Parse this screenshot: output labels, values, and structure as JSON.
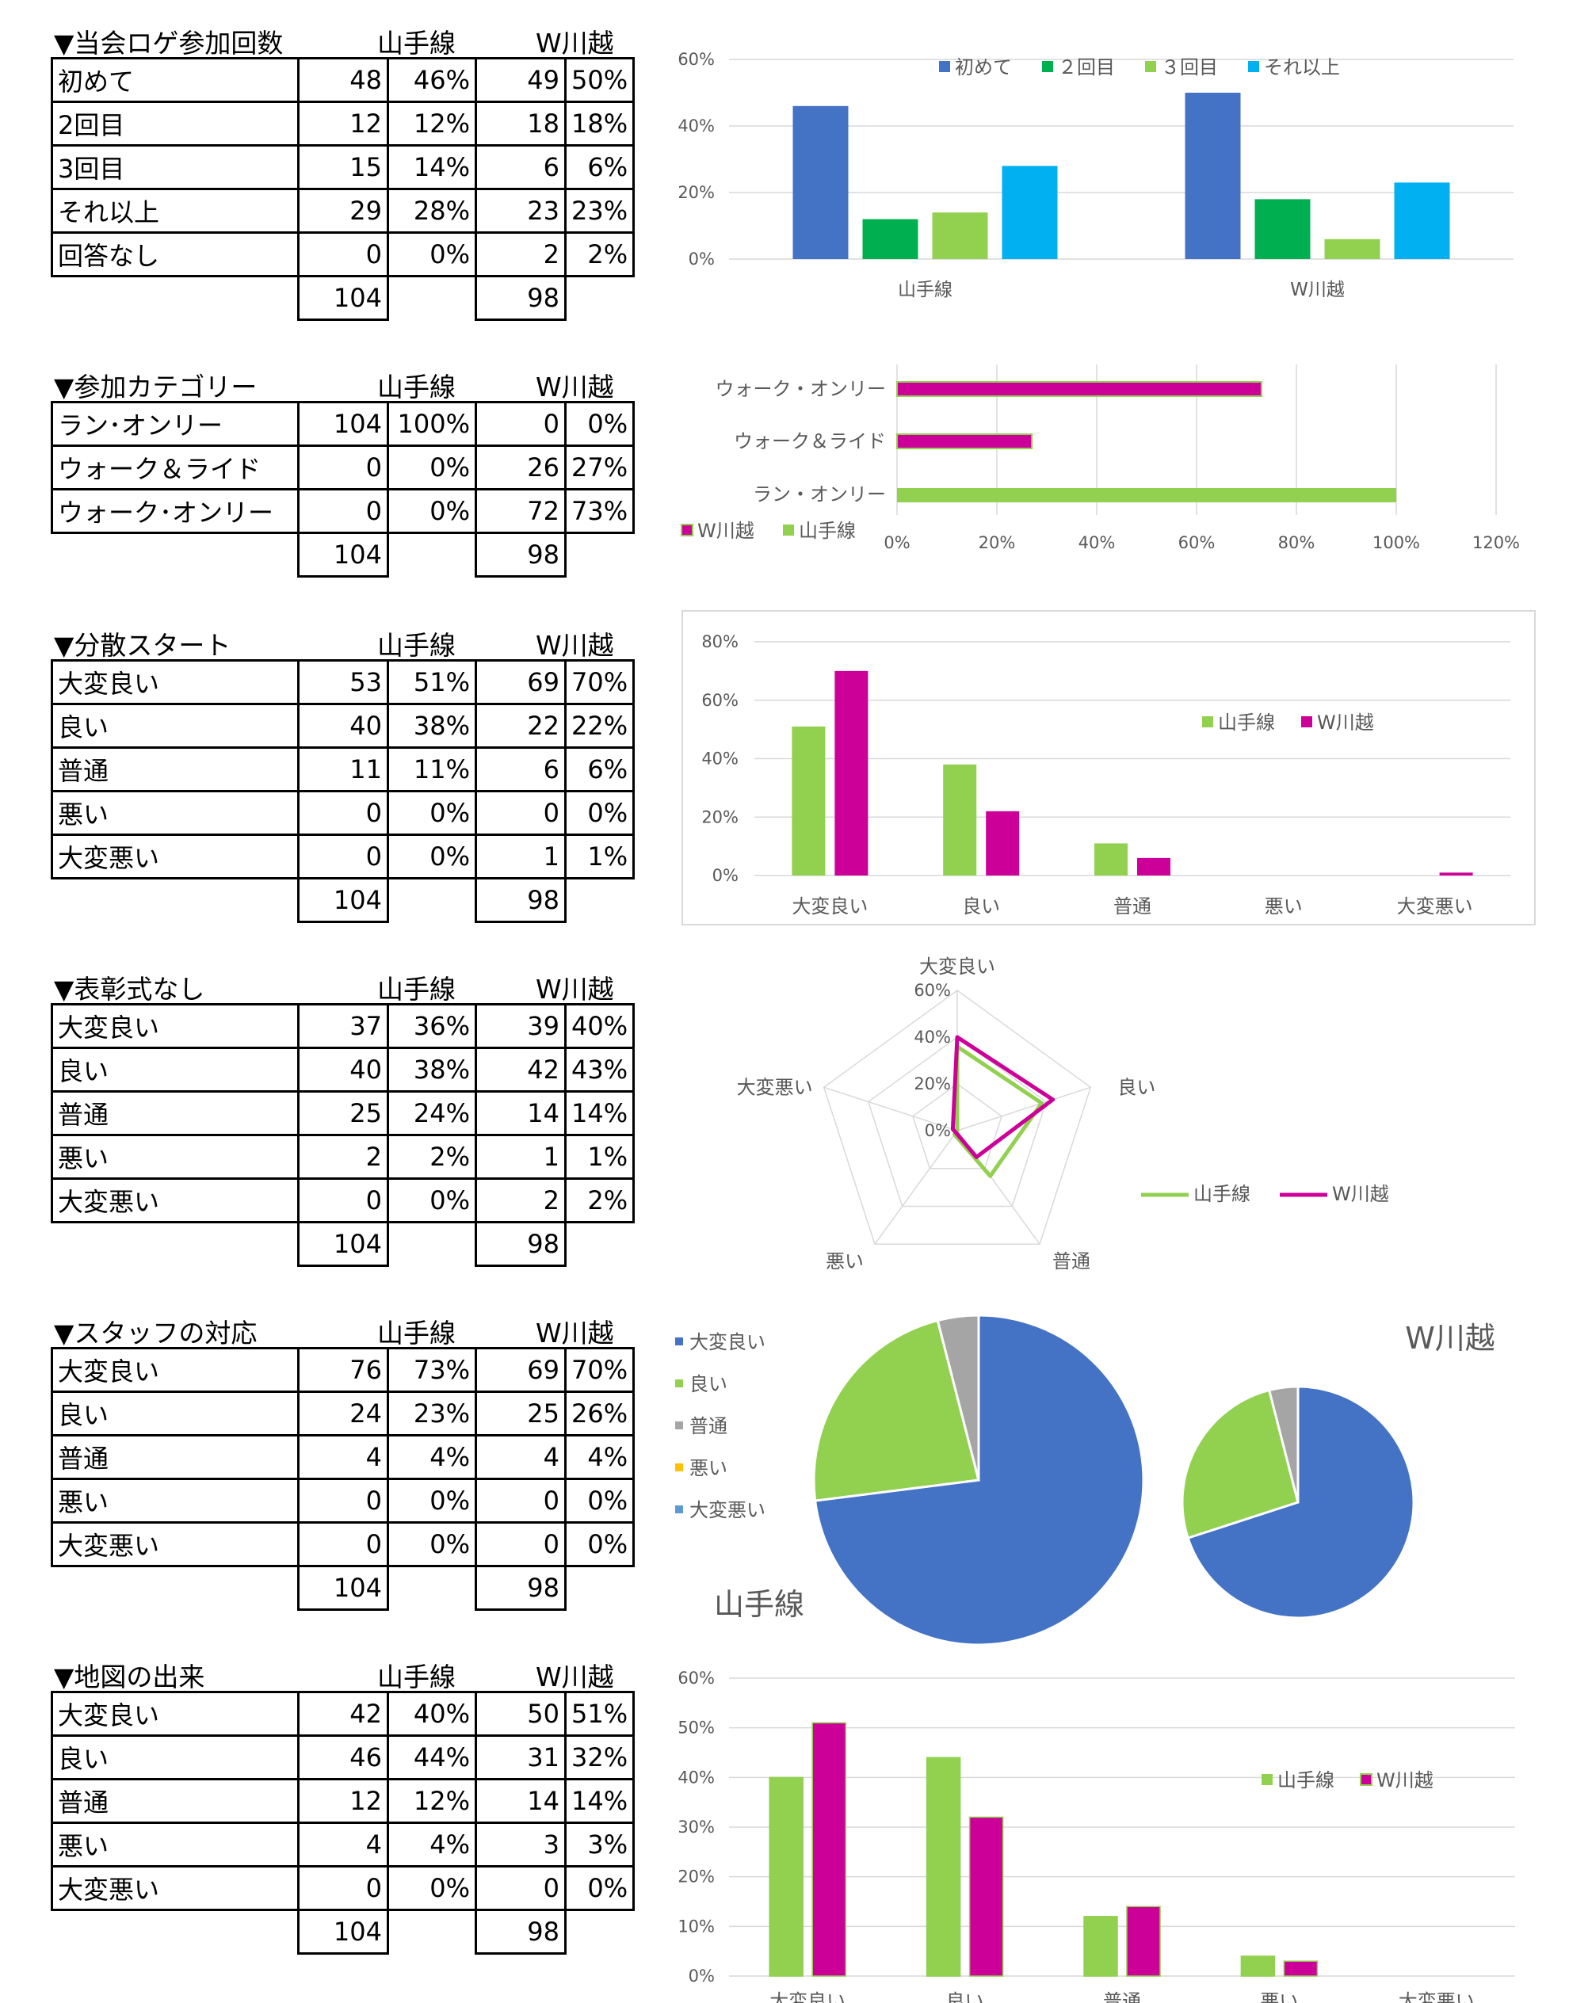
{
  "colors": {
    "blue": "#4472C4",
    "green": "#00B050",
    "lightgreen": "#92D050",
    "cyan": "#00B0F0",
    "magenta": "#CC0099",
    "gray": "#A5A5A5",
    "gold": "#FFC000",
    "steel": "#5B9BD5"
  },
  "sections": [
    {
      "title": "▼当会ロゲ参加回数",
      "col1": "山手線",
      "col2": "W川越",
      "rows": [
        {
          "label": "初めて",
          "n1": "48",
          "p1": "46%",
          "n2": "49",
          "p2": "50%"
        },
        {
          "label": "2回目",
          "n1": "12",
          "p1": "12%",
          "n2": "18",
          "p2": "18%"
        },
        {
          "label": "3回目",
          "n1": "15",
          "p1": "14%",
          "n2": "6",
          "p2": "6%"
        },
        {
          "label": "それ以上",
          "n1": "29",
          "p1": "28%",
          "n2": "23",
          "p2": "23%"
        },
        {
          "label": "回答なし",
          "n1": "0",
          "p1": "0%",
          "n2": "2",
          "p2": "2%"
        }
      ],
      "total1": "104",
      "total2": "98"
    },
    {
      "title": "▼参加カテゴリー",
      "col1": "山手線",
      "col2": "W川越",
      "rows": [
        {
          "label": "ラン･オンリー",
          "n1": "104",
          "p1": "100%",
          "n2": "0",
          "p2": "0%"
        },
        {
          "label": "ウォーク＆ライド",
          "n1": "0",
          "p1": "0%",
          "n2": "26",
          "p2": "27%"
        },
        {
          "label": "ウォーク･オンリー",
          "n1": "0",
          "p1": "0%",
          "n2": "72",
          "p2": "73%"
        }
      ],
      "total1": "104",
      "total2": "98"
    },
    {
      "title": "▼分散スタート",
      "col1": "山手線",
      "col2": "W川越",
      "rows": [
        {
          "label": "大変良い",
          "n1": "53",
          "p1": "51%",
          "n2": "69",
          "p2": "70%"
        },
        {
          "label": "良い",
          "n1": "40",
          "p1": "38%",
          "n2": "22",
          "p2": "22%"
        },
        {
          "label": "普通",
          "n1": "11",
          "p1": "11%",
          "n2": "6",
          "p2": "6%"
        },
        {
          "label": "悪い",
          "n1": "0",
          "p1": "0%",
          "n2": "0",
          "p2": "0%"
        },
        {
          "label": "大変悪い",
          "n1": "0",
          "p1": "0%",
          "n2": "1",
          "p2": "1%"
        }
      ],
      "total1": "104",
      "total2": "98"
    },
    {
      "title": "▼表彰式なし",
      "col1": "山手線",
      "col2": "W川越",
      "rows": [
        {
          "label": "大変良い",
          "n1": "37",
          "p1": "36%",
          "n2": "39",
          "p2": "40%"
        },
        {
          "label": "良い",
          "n1": "40",
          "p1": "38%",
          "n2": "42",
          "p2": "43%"
        },
        {
          "label": "普通",
          "n1": "25",
          "p1": "24%",
          "n2": "14",
          "p2": "14%"
        },
        {
          "label": "悪い",
          "n1": "2",
          "p1": "2%",
          "n2": "1",
          "p2": "1%"
        },
        {
          "label": "大変悪い",
          "n1": "0",
          "p1": "0%",
          "n2": "2",
          "p2": "2%"
        }
      ],
      "total1": "104",
      "total2": "98"
    },
    {
      "title": "▼スタッフの対応",
      "col1": "山手線",
      "col2": "W川越",
      "rows": [
        {
          "label": "大変良い",
          "n1": "76",
          "p1": "73%",
          "n2": "69",
          "p2": "70%"
        },
        {
          "label": "良い",
          "n1": "24",
          "p1": "23%",
          "n2": "25",
          "p2": "26%"
        },
        {
          "label": "普通",
          "n1": "4",
          "p1": "4%",
          "n2": "4",
          "p2": "4%"
        },
        {
          "label": "悪い",
          "n1": "0",
          "p1": "0%",
          "n2": "0",
          "p2": "0%"
        },
        {
          "label": "大変悪い",
          "n1": "0",
          "p1": "0%",
          "n2": "0",
          "p2": "0%"
        }
      ],
      "total1": "104",
      "total2": "98"
    },
    {
      "title": "▼地図の出来",
      "col1": "山手線",
      "col2": "W川越",
      "rows": [
        {
          "label": "大変良い",
          "n1": "42",
          "p1": "40%",
          "n2": "50",
          "p2": "51%"
        },
        {
          "label": "良い",
          "n1": "46",
          "p1": "44%",
          "n2": "31",
          "p2": "32%"
        },
        {
          "label": "普通",
          "n1": "12",
          "p1": "12%",
          "n2": "14",
          "p2": "14%"
        },
        {
          "label": "悪い",
          "n1": "4",
          "p1": "4%",
          "n2": "3",
          "p2": "3%"
        },
        {
          "label": "大変悪い",
          "n1": "0",
          "p1": "0%",
          "n2": "0",
          "p2": "0%"
        }
      ],
      "total1": "104",
      "total2": "98"
    }
  ],
  "chart_data": [
    {
      "type": "bar",
      "categories": [
        "山手線",
        "W川越"
      ],
      "series": [
        {
          "name": "初めて",
          "values": [
            46,
            50
          ]
        },
        {
          "name": "２回目",
          "values": [
            12,
            18
          ]
        },
        {
          "name": "３回目",
          "values": [
            14,
            6
          ]
        },
        {
          "name": "それ以上",
          "values": [
            28,
            23
          ]
        }
      ],
      "ylim": [
        0,
        60
      ],
      "ticks": [
        0,
        20,
        40,
        60
      ],
      "tick_labels": [
        "0%",
        "20%",
        "40%",
        "60%"
      ],
      "legend": "top"
    },
    {
      "type": "bar",
      "orientation": "horizontal",
      "categories": [
        "ウォーク・オンリー",
        "ウォーク＆ライド",
        "ラン・オンリー"
      ],
      "series": [
        {
          "name": "W川越",
          "values": [
            73,
            27,
            0
          ]
        },
        {
          "name": "山手線",
          "values": [
            0,
            0,
            100
          ]
        }
      ],
      "xlim": [
        0,
        120
      ],
      "ticks": [
        0,
        20,
        40,
        60,
        80,
        100,
        120
      ],
      "tick_labels": [
        "0%",
        "20%",
        "40%",
        "60%",
        "80%",
        "100%",
        "120%"
      ],
      "legend": "bottom-left"
    },
    {
      "type": "bar",
      "categories": [
        "大変良い",
        "良い",
        "普通",
        "悪い",
        "大変悪い"
      ],
      "series": [
        {
          "name": "山手線",
          "values": [
            51,
            38,
            11,
            0,
            0
          ]
        },
        {
          "name": "W川越",
          "values": [
            70,
            22,
            6,
            0,
            1
          ]
        }
      ],
      "ylim": [
        0,
        80
      ],
      "ticks": [
        0,
        20,
        40,
        60,
        80
      ],
      "tick_labels": [
        "0%",
        "20%",
        "40%",
        "60%",
        "80%"
      ],
      "legend": "right"
    },
    {
      "type": "radar",
      "categories": [
        "大変良い",
        "良い",
        "普通",
        "悪い",
        "大変悪い"
      ],
      "series": [
        {
          "name": "山手線",
          "values": [
            36,
            38,
            24,
            2,
            0
          ]
        },
        {
          "name": "W川越",
          "values": [
            40,
            43,
            14,
            1,
            2
          ]
        }
      ],
      "rlim": [
        0,
        60
      ],
      "ticks": [
        0,
        20,
        40,
        60
      ],
      "tick_labels": [
        "0%",
        "20%",
        "40%",
        "60%"
      ],
      "legend": "right"
    },
    {
      "type": "pie",
      "legend_labels": [
        "大変良い",
        "良い",
        "普通",
        "悪い",
        "大変悪い"
      ],
      "pies": [
        {
          "name": "山手線",
          "values": [
            73,
            23,
            4,
            0,
            0
          ]
        },
        {
          "name": "W川越",
          "values": [
            70,
            26,
            4,
            0,
            0
          ]
        }
      ],
      "legend": "left"
    },
    {
      "type": "bar",
      "categories": [
        "大変良い",
        "良い",
        "普通",
        "悪い",
        "大変悪い"
      ],
      "series": [
        {
          "name": "山手線",
          "values": [
            40,
            44,
            12,
            4,
            0
          ]
        },
        {
          "name": "W川越",
          "values": [
            51,
            32,
            14,
            3,
            0
          ]
        }
      ],
      "ylim": [
        0,
        60
      ],
      "ticks": [
        0,
        10,
        20,
        30,
        40,
        50,
        60
      ],
      "tick_labels": [
        "0%",
        "10%",
        "20%",
        "30%",
        "40%",
        "50%",
        "60%"
      ],
      "legend": "right"
    }
  ]
}
